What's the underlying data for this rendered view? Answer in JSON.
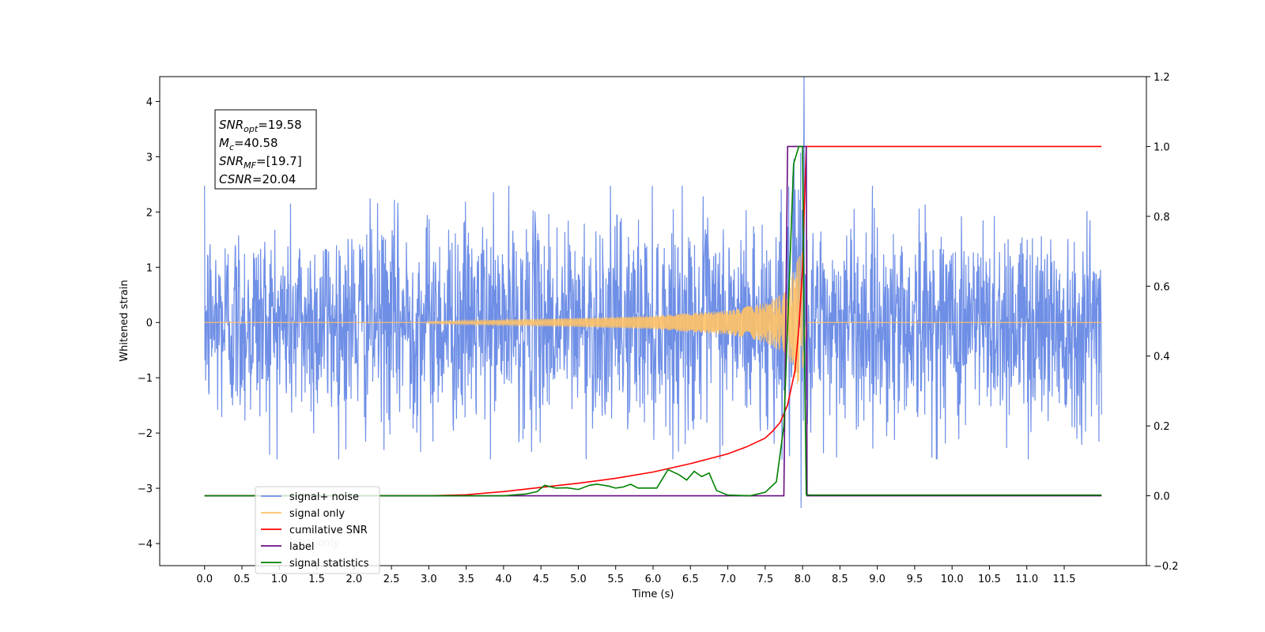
{
  "chart_data": {
    "type": "line",
    "xlabel": "Time (s)",
    "ylabel": "Whitened strain",
    "xlim": [
      -0.6,
      12.6
    ],
    "ylim": [
      -4.4,
      4.45
    ],
    "y2lim": [
      -0.2,
      1.2
    ],
    "x_ticks": [
      "0.0",
      "0.5",
      "1.0",
      "1.5",
      "2.0",
      "2.5",
      "3.0",
      "3.5",
      "4.0",
      "4.5",
      "5.0",
      "5.5",
      "6.0",
      "6.5",
      "7.0",
      "7.5",
      "8.0",
      "8.5",
      "9.0",
      "9.5",
      "10.0",
      "10.5",
      "11.0",
      "11.5"
    ],
    "y_ticks": [
      "4",
      "3",
      "2",
      "1",
      "0",
      "−1",
      "−2",
      "−3",
      "−4"
    ],
    "y2_ticks": [
      "1.2",
      "1.0",
      "0.8",
      "0.6",
      "0.4",
      "0.2",
      "0.0",
      "−0.2"
    ],
    "info_box": [
      {
        "sym": "SNR",
        "sub": "opt",
        "value": "=19.58"
      },
      {
        "sym": "M",
        "sub": "c",
        "value": "=40.58"
      },
      {
        "sym": "SNR",
        "sub": "MF",
        "value": "=[19.7]"
      },
      {
        "sym": "CSNR",
        "sub": "",
        "value": "=20.04"
      }
    ],
    "legend": {
      "placement": "lower-left",
      "entries": [
        {
          "label": "signal+ noise",
          "color": "#6f8fe6"
        },
        {
          "label": "signal only",
          "color": "#ffc266"
        },
        {
          "label": "cumilative SNR",
          "color": "#ff0000"
        },
        {
          "label": "label",
          "color": "#6a0d83"
        },
        {
          "label": "signal statistics",
          "color": "#008000"
        }
      ],
      "ghost_text": [
        "label only"
      ]
    },
    "series": [
      {
        "name": "signal+ noise",
        "axis": "left",
        "color": "#6f8fe6",
        "envelope_x": [
          0.0,
          1.0,
          2.0,
          3.0,
          4.0,
          5.0,
          6.0,
          7.0,
          7.6,
          7.8,
          7.9,
          7.95,
          8.0,
          8.05,
          8.1,
          9.0,
          10.0,
          11.0,
          12.0
        ],
        "envelope_amp": [
          1.5,
          1.5,
          1.5,
          1.5,
          1.5,
          1.5,
          1.5,
          1.5,
          1.5,
          1.7,
          2.0,
          3.2,
          4.1,
          2.0,
          1.5,
          1.5,
          1.5,
          1.5,
          1.5
        ]
      },
      {
        "name": "signal only",
        "axis": "left",
        "color": "#ffc266",
        "chirp_start": 3.0,
        "merger": 8.0,
        "peak_amplitude": 1.5,
        "values_note_x": [
          3.0,
          5.0,
          6.0,
          7.0,
          7.5,
          7.8,
          7.95,
          8.0,
          8.05
        ],
        "values_amp": [
          0.02,
          0.08,
          0.12,
          0.22,
          0.35,
          0.6,
          1.2,
          1.5,
          0.0
        ]
      },
      {
        "name": "cumilative SNR",
        "axis": "right",
        "color": "#ff0000",
        "x": [
          0.0,
          3.0,
          3.5,
          4.0,
          4.5,
          5.0,
          5.5,
          6.0,
          6.5,
          7.0,
          7.25,
          7.5,
          7.6,
          7.7,
          7.8,
          7.9,
          7.95,
          8.0,
          8.02,
          8.05,
          8.1,
          12.0
        ],
        "values": [
          0.0,
          0.0,
          0.003,
          0.012,
          0.024,
          0.036,
          0.05,
          0.068,
          0.092,
          0.12,
          0.14,
          0.165,
          0.185,
          0.21,
          0.26,
          0.36,
          0.48,
          0.65,
          0.8,
          1.0,
          1.0,
          1.0
        ]
      },
      {
        "name": "label",
        "axis": "right",
        "color": "#6a0d83",
        "x": [
          0.0,
          7.75,
          7.8,
          8.05,
          8.06,
          12.0
        ],
        "values": [
          0.0,
          0.0,
          1.0,
          1.0,
          0.0,
          0.0
        ]
      },
      {
        "name": "signal statistics",
        "axis": "right",
        "color": "#008000",
        "x": [
          0.0,
          4.0,
          4.3,
          4.45,
          4.55,
          4.7,
          4.85,
          5.0,
          5.15,
          5.25,
          5.4,
          5.5,
          5.6,
          5.7,
          5.8,
          5.9,
          6.05,
          6.2,
          6.35,
          6.45,
          6.55,
          6.65,
          6.75,
          6.85,
          7.0,
          7.3,
          7.5,
          7.65,
          7.75,
          7.82,
          7.88,
          7.95,
          8.0,
          8.02,
          8.05,
          8.1,
          12.0
        ],
        "values": [
          0.0,
          0.0,
          0.005,
          0.012,
          0.03,
          0.022,
          0.023,
          0.018,
          0.03,
          0.033,
          0.028,
          0.022,
          0.025,
          0.033,
          0.022,
          0.022,
          0.022,
          0.075,
          0.06,
          0.045,
          0.07,
          0.055,
          0.065,
          0.015,
          0.002,
          0.0,
          0.01,
          0.04,
          0.2,
          0.6,
          0.95,
          1.0,
          1.0,
          0.5,
          0.003,
          0.002,
          0.002
        ]
      }
    ]
  }
}
